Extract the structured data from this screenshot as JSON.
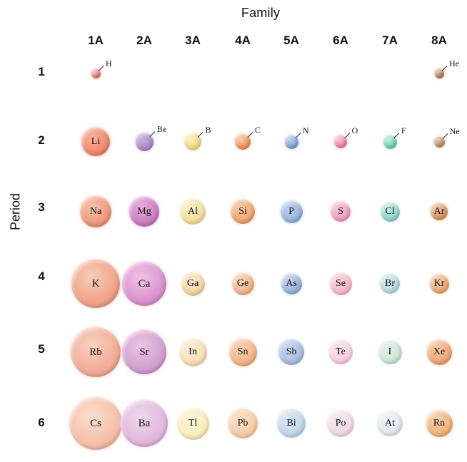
{
  "title": "Family",
  "axis_label": "Period",
  "families": [
    "1A",
    "2A",
    "3A",
    "4A",
    "5A",
    "6A",
    "7A",
    "8A"
  ],
  "periods": [
    "1",
    "2",
    "3",
    "4",
    "5",
    "6"
  ],
  "elements": [
    {
      "symbol": "H",
      "family": "1A",
      "period": "1",
      "col": 0,
      "row": 0,
      "size": 13,
      "color": "#e5604e",
      "light": "#f7ad9d",
      "label_outside": true
    },
    {
      "symbol": "He",
      "family": "8A",
      "period": "1",
      "col": 7,
      "row": 0,
      "size": 13,
      "color": "#a06e4e",
      "light": "#d2a88c",
      "label_outside": true
    },
    {
      "symbol": "Li",
      "family": "1A",
      "period": "2",
      "col": 0,
      "row": 1,
      "size": 40,
      "color": "#ec7a5c",
      "light": "#f6b29e",
      "label_outside": false
    },
    {
      "symbol": "Be",
      "family": "2A",
      "period": "2",
      "col": 1,
      "row": 1,
      "size": 25,
      "color": "#9e7cc0",
      "light": "#c9aede",
      "label_outside": true
    },
    {
      "symbol": "B",
      "family": "3A",
      "period": "2",
      "col": 2,
      "row": 1,
      "size": 24,
      "color": "#f4cf6e",
      "light": "#fcefc2",
      "label_outside": true
    },
    {
      "symbol": "C",
      "family": "4A",
      "period": "2",
      "col": 3,
      "row": 1,
      "size": 22,
      "color": "#ec8040",
      "light": "#f8c8a0",
      "label_outside": true
    },
    {
      "symbol": "N",
      "family": "5A",
      "period": "2",
      "col": 4,
      "row": 1,
      "size": 19,
      "color": "#6e96cc",
      "light": "#b0c8e8",
      "label_outside": true
    },
    {
      "symbol": "O",
      "family": "6A",
      "period": "2",
      "col": 5,
      "row": 1,
      "size": 18,
      "color": "#ec6f9a",
      "light": "#f8b8cc",
      "label_outside": true
    },
    {
      "symbol": "F",
      "family": "7A",
      "period": "2",
      "col": 6,
      "row": 1,
      "size": 19,
      "color": "#58c4ac",
      "light": "#b0e8d8",
      "label_outside": true
    },
    {
      "symbol": "Ne",
      "family": "8A",
      "period": "2",
      "col": 7,
      "row": 1,
      "size": 15,
      "color": "#b08055",
      "light": "#d8b898",
      "label_outside": true
    },
    {
      "symbol": "Na",
      "family": "1A",
      "period": "3",
      "col": 0,
      "row": 2,
      "size": 44,
      "color": "#ea8a6a",
      "light": "#f8c4ac",
      "label_outside": false
    },
    {
      "symbol": "Mg",
      "family": "2A",
      "period": "3",
      "col": 1,
      "row": 2,
      "size": 42,
      "color": "#c06cb4",
      "light": "#e6b0dc",
      "label_outside": false
    },
    {
      "symbol": "Al",
      "family": "3A",
      "period": "3",
      "col": 2,
      "row": 2,
      "size": 36,
      "color": "#f7d78c",
      "light": "#fdf2cc",
      "label_outside": false
    },
    {
      "symbol": "Si",
      "family": "4A",
      "period": "3",
      "col": 3,
      "row": 2,
      "size": 34,
      "color": "#ef935c",
      "light": "#f8cfa8",
      "label_outside": false
    },
    {
      "symbol": "P",
      "family": "5A",
      "period": "3",
      "col": 4,
      "row": 2,
      "size": 31,
      "color": "#84a8d8",
      "light": "#c2d6ee",
      "label_outside": false
    },
    {
      "symbol": "S",
      "family": "6A",
      "period": "3",
      "col": 5,
      "row": 2,
      "size": 28,
      "color": "#f08cb0",
      "light": "#f8ccdc",
      "label_outside": false
    },
    {
      "symbol": "Cl",
      "family": "7A",
      "period": "3",
      "col": 6,
      "row": 2,
      "size": 27,
      "color": "#7eccc4",
      "light": "#c6ece6",
      "label_outside": false
    },
    {
      "symbol": "Ar",
      "family": "8A",
      "period": "3",
      "col": 7,
      "row": 2,
      "size": 24,
      "color": "#d4854f",
      "light": "#eec49c",
      "label_outside": false
    },
    {
      "symbol": "K",
      "family": "1A",
      "period": "4",
      "col": 0,
      "row": 3,
      "size": 68,
      "color": "#ee9579",
      "light": "#f8cdb8",
      "label_outside": false
    },
    {
      "symbol": "Ca",
      "family": "2A",
      "period": "4",
      "col": 1,
      "row": 3,
      "size": 62,
      "color": "#d583c6",
      "light": "#eec4e4",
      "label_outside": false
    },
    {
      "symbol": "Ga",
      "family": "3A",
      "period": "4",
      "col": 2,
      "row": 3,
      "size": 33,
      "color": "#f4cf9a",
      "light": "#fbeacc",
      "label_outside": false
    },
    {
      "symbol": "Ge",
      "family": "4A",
      "period": "4",
      "col": 3,
      "row": 3,
      "size": 31,
      "color": "#efab7c",
      "light": "#f8d7b8",
      "label_outside": false
    },
    {
      "symbol": "As",
      "family": "5A",
      "period": "4",
      "col": 4,
      "row": 3,
      "size": 29,
      "color": "#8aa8d4",
      "light": "#c4d4ec",
      "label_outside": false
    },
    {
      "symbol": "Se",
      "family": "6A",
      "period": "4",
      "col": 5,
      "row": 3,
      "size": 31,
      "color": "#f4aec4",
      "light": "#fad6e0",
      "label_outside": false
    },
    {
      "symbol": "Br",
      "family": "7A",
      "period": "4",
      "col": 6,
      "row": 3,
      "size": 28,
      "color": "#a8d4d8",
      "light": "#d6eef0",
      "label_outside": false
    },
    {
      "symbol": "Kr",
      "family": "8A",
      "period": "4",
      "col": 7,
      "row": 3,
      "size": 27,
      "color": "#ea9a5e",
      "light": "#f6ccaa",
      "label_outside": false
    },
    {
      "symbol": "Rb",
      "family": "1A",
      "period": "5",
      "col": 0,
      "row": 4,
      "size": 70,
      "color": "#efa088",
      "light": "#f9d2c2",
      "label_outside": false
    },
    {
      "symbol": "Sr",
      "family": "2A",
      "period": "5",
      "col": 1,
      "row": 4,
      "size": 62,
      "color": "#ca93c8",
      "light": "#e8c8e4",
      "label_outside": false
    },
    {
      "symbol": "In",
      "family": "3A",
      "period": "5",
      "col": 2,
      "row": 4,
      "size": 39,
      "color": "#f8d7ae",
      "light": "#fdf0da",
      "label_outside": false
    },
    {
      "symbol": "Sn",
      "family": "4A",
      "period": "5",
      "col": 3,
      "row": 4,
      "size": 39,
      "color": "#f1a976",
      "light": "#f9d6b4",
      "label_outside": false
    },
    {
      "symbol": "Sb",
      "family": "5A",
      "period": "5",
      "col": 4,
      "row": 4,
      "size": 36,
      "color": "#9cb4de",
      "light": "#ccdaf0",
      "label_outside": false
    },
    {
      "symbol": "Te",
      "family": "6A",
      "period": "5",
      "col": 5,
      "row": 4,
      "size": 34,
      "color": "#f5c6da",
      "light": "#fbe6ee",
      "label_outside": false
    },
    {
      "symbol": "I",
      "family": "7A",
      "period": "5",
      "col": 6,
      "row": 4,
      "size": 33,
      "color": "#c4dfd0",
      "light": "#e6f3ec",
      "label_outside": false
    },
    {
      "symbol": "Xe",
      "family": "8A",
      "period": "5",
      "col": 7,
      "row": 4,
      "size": 35,
      "color": "#ec9a62",
      "light": "#f7ccab",
      "label_outside": false
    },
    {
      "symbol": "Cs",
      "family": "1A",
      "period": "6",
      "col": 0,
      "row": 5,
      "size": 74,
      "color": "#f3b49a",
      "light": "#fbdfd0",
      "label_outside": false
    },
    {
      "symbol": "Ba",
      "family": "2A",
      "period": "6",
      "col": 1,
      "row": 5,
      "size": 66,
      "color": "#dcaed8",
      "light": "#f1d8ee",
      "label_outside": false
    },
    {
      "symbol": "Tl",
      "family": "3A",
      "period": "6",
      "col": 2,
      "row": 5,
      "size": 45,
      "color": "#f8e8b0",
      "light": "#fdf6dc",
      "label_outside": false
    },
    {
      "symbol": "Pb",
      "family": "4A",
      "period": "6",
      "col": 3,
      "row": 5,
      "size": 42,
      "color": "#f6c49a",
      "light": "#fce4cc",
      "label_outside": false
    },
    {
      "symbol": "Bi",
      "family": "5A",
      "period": "6",
      "col": 4,
      "row": 5,
      "size": 40,
      "color": "#b8d0e8",
      "light": "#ddeaf5",
      "label_outside": false
    },
    {
      "symbol": "Po",
      "family": "6A",
      "period": "6",
      "col": 5,
      "row": 5,
      "size": 38,
      "color": "#efd4e0",
      "light": "#f9ebf1",
      "label_outside": false
    },
    {
      "symbol": "At",
      "family": "7A",
      "period": "6",
      "col": 6,
      "row": 5,
      "size": 36,
      "color": "#dde4ea",
      "light": "#f1f4f7",
      "label_outside": false
    },
    {
      "symbol": "Rn",
      "family": "8A",
      "period": "6",
      "col": 7,
      "row": 5,
      "size": 37,
      "color": "#efa865",
      "light": "#f8d4ae",
      "label_outside": false
    }
  ]
}
